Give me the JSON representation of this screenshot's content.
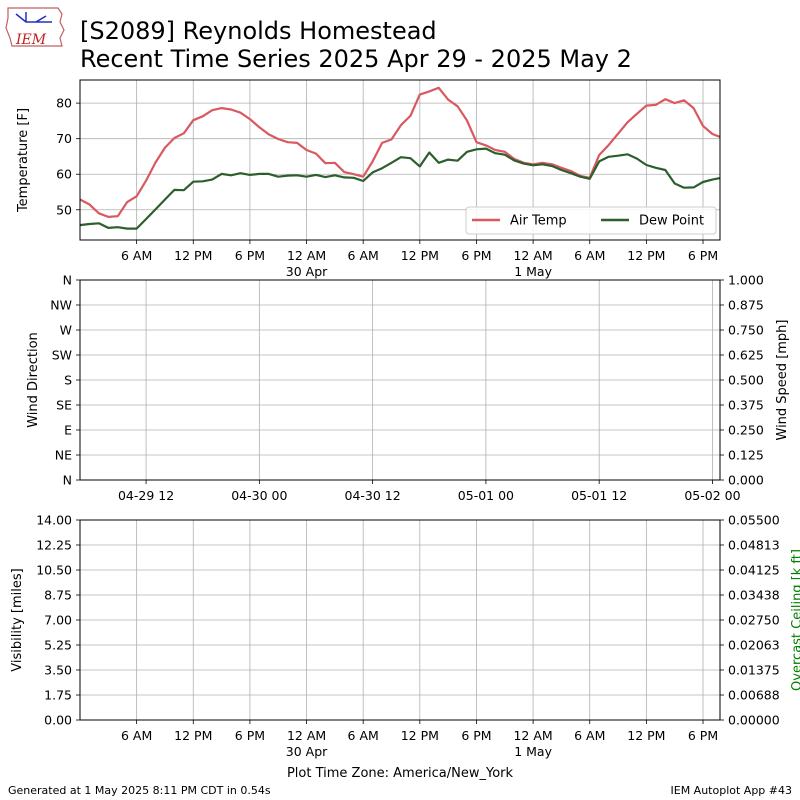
{
  "header": {
    "title_line1": "[S2089] Reynolds Homestead",
    "title_line2": "Recent Time Series 2025 Apr 29 - 2025 May 2",
    "logo_text": "IEM"
  },
  "footer": {
    "generated": "Generated at 1 May 2025 8:11 PM CDT in 0.54s",
    "app": "IEM Autoplot App #43",
    "timezone": "Plot Time Zone: America/New_York"
  },
  "colors": {
    "air_temp": "#d9595f",
    "dew_point": "#2d5e2d",
    "ceiling_label": "#008000"
  },
  "chart_data": [
    {
      "type": "line",
      "id": "temperature",
      "ylabel": "Temperature [F]",
      "xlim": [
        0,
        67.8
      ],
      "ylim": [
        41.5,
        86.5
      ],
      "yticks": [
        50,
        60,
        70,
        80
      ],
      "x_tick_labels": [
        {
          "x": 6,
          "label": "6 AM"
        },
        {
          "x": 12,
          "label": "12 PM"
        },
        {
          "x": 18,
          "label": "6 PM"
        },
        {
          "x": 24,
          "label": "12 AM",
          "sub": "30 Apr"
        },
        {
          "x": 30,
          "label": "6 AM"
        },
        {
          "x": 36,
          "label": "12 PM"
        },
        {
          "x": 42,
          "label": "6 PM"
        },
        {
          "x": 48,
          "label": "12 AM",
          "sub": "1 May"
        },
        {
          "x": 54,
          "label": "6 AM"
        },
        {
          "x": 60,
          "label": "12 PM"
        },
        {
          "x": 66,
          "label": "6 PM"
        }
      ],
      "legend": {
        "placement": "lower-right",
        "entries": [
          "Air Temp",
          "Dew Point"
        ]
      },
      "series": [
        {
          "name": "Air Temp",
          "x": [
            0,
            1,
            2,
            3,
            4,
            5,
            6,
            7,
            8,
            9,
            10,
            11,
            12,
            13,
            14,
            15,
            16,
            17,
            18,
            19,
            20,
            21,
            22,
            23,
            24,
            25,
            26,
            27,
            28,
            29,
            30,
            31,
            32,
            33,
            34,
            35,
            36,
            37,
            38,
            39,
            40,
            41,
            42,
            43,
            44,
            45,
            46,
            47,
            48,
            49,
            50,
            51,
            52,
            53,
            54,
            55,
            56,
            57,
            58,
            59,
            60,
            61,
            62,
            63,
            64,
            65,
            66,
            67,
            67.8
          ],
          "values": [
            52.9,
            51.5,
            49,
            48,
            48.2,
            52.2,
            53.8,
            58.2,
            63.3,
            67.5,
            70.2,
            71.5,
            75.2,
            76.3,
            78,
            78.6,
            78.2,
            77.3,
            75.5,
            73.2,
            71.2,
            69.9,
            69,
            68.8,
            66.8,
            65.8,
            63.1,
            63.2,
            60.6,
            60,
            59.3,
            63.6,
            68.8,
            69.8,
            73.8,
            76.4,
            82.4,
            83.3,
            84.3,
            81,
            79.1,
            75.1,
            69,
            68.1,
            66.8,
            66.3,
            64.3,
            63.2,
            62.8,
            63.2,
            62.8,
            61.8,
            60.9,
            59.5,
            59,
            65.4,
            68.2,
            71.4,
            74.6,
            77,
            79.3,
            79.5,
            81.1,
            80,
            80.8,
            78.6,
            73.6,
            71.3,
            70.5
          ]
        },
        {
          "name": "Dew Point",
          "x": [
            0,
            1,
            2,
            3,
            4,
            5,
            6,
            7,
            8,
            9,
            10,
            11,
            12,
            13,
            14,
            15,
            16,
            17,
            18,
            19,
            20,
            21,
            22,
            23,
            24,
            25,
            26,
            27,
            28,
            29,
            30,
            31,
            32,
            33,
            34,
            35,
            36,
            37,
            38,
            39,
            40,
            41,
            42,
            43,
            44,
            45,
            46,
            47,
            48,
            49,
            50,
            51,
            52,
            53,
            54,
            55,
            56,
            57,
            58,
            59,
            60,
            61,
            62,
            63,
            64,
            65,
            66,
            67,
            67.8
          ],
          "values": [
            45.7,
            46,
            46.2,
            44.9,
            45.1,
            44.7,
            44.7,
            47.4,
            50.1,
            52.9,
            55.6,
            55.5,
            57.9,
            58,
            58.5,
            60.1,
            59.7,
            60.3,
            59.8,
            60.1,
            60.1,
            59.3,
            59.6,
            59.7,
            59.3,
            59.8,
            59.2,
            59.7,
            59.1,
            59,
            58.1,
            60.5,
            61.7,
            63.2,
            64.8,
            64.5,
            62.2,
            66.1,
            63.2,
            64.1,
            63.8,
            66.3,
            67,
            67.2,
            65.9,
            65.5,
            63.9,
            63,
            62.5,
            62.8,
            62.3,
            61.2,
            60.3,
            59.3,
            58.7,
            63.6,
            64.9,
            65.2,
            65.6,
            64.4,
            62.6,
            61.8,
            61.2,
            57.4,
            56.2,
            56.3,
            57.8,
            58.5,
            58.9
          ]
        }
      ]
    },
    {
      "type": "line",
      "id": "wind",
      "ylabel": "Wind Direction",
      "y2label": "Wind Speed [mph]",
      "xlim": [
        0,
        67.8
      ],
      "y_direction_labels": [
        "N",
        "NE",
        "E",
        "SE",
        "S",
        "SW",
        "W",
        "NW",
        "N"
      ],
      "y2lim": [
        0,
        1
      ],
      "y2_tick_labels": [
        "0.000",
        "0.125",
        "0.250",
        "0.375",
        "0.500",
        "0.625",
        "0.750",
        "0.875",
        "1.000"
      ],
      "x_tick_labels": [
        {
          "x": 7,
          "label": "04-29 12"
        },
        {
          "x": 19,
          "label": "04-30 00"
        },
        {
          "x": 31,
          "label": "04-30 12"
        },
        {
          "x": 43,
          "label": "05-01 00"
        },
        {
          "x": 55,
          "label": "05-01 12"
        },
        {
          "x": 67,
          "label": "05-02 00"
        }
      ],
      "series": []
    },
    {
      "type": "line",
      "id": "visibility",
      "ylabel": "Visibility [miles]",
      "y2label": "Overcast Ceiling [k ft]",
      "xlim": [
        0,
        67.8
      ],
      "ylim": [
        0,
        14
      ],
      "y_tick_labels": [
        "0.00",
        "1.75",
        "3.50",
        "5.25",
        "7.00",
        "8.75",
        "10.50",
        "12.25",
        "14.00"
      ],
      "y2_tick_labels": [
        "0.00000",
        "0.00688",
        "0.01375",
        "0.02063",
        "0.02750",
        "0.03438",
        "0.04125",
        "0.04813",
        "0.05500"
      ],
      "x_tick_labels": [
        {
          "x": 6,
          "label": "6 AM"
        },
        {
          "x": 12,
          "label": "12 PM"
        },
        {
          "x": 18,
          "label": "6 PM"
        },
        {
          "x": 24,
          "label": "12 AM",
          "sub": "30 Apr"
        },
        {
          "x": 30,
          "label": "6 AM"
        },
        {
          "x": 36,
          "label": "12 PM"
        },
        {
          "x": 42,
          "label": "6 PM"
        },
        {
          "x": 48,
          "label": "12 AM",
          "sub": "1 May"
        },
        {
          "x": 54,
          "label": "6 AM"
        },
        {
          "x": 60,
          "label": "12 PM"
        },
        {
          "x": 66,
          "label": "6 PM"
        }
      ],
      "series": []
    }
  ]
}
